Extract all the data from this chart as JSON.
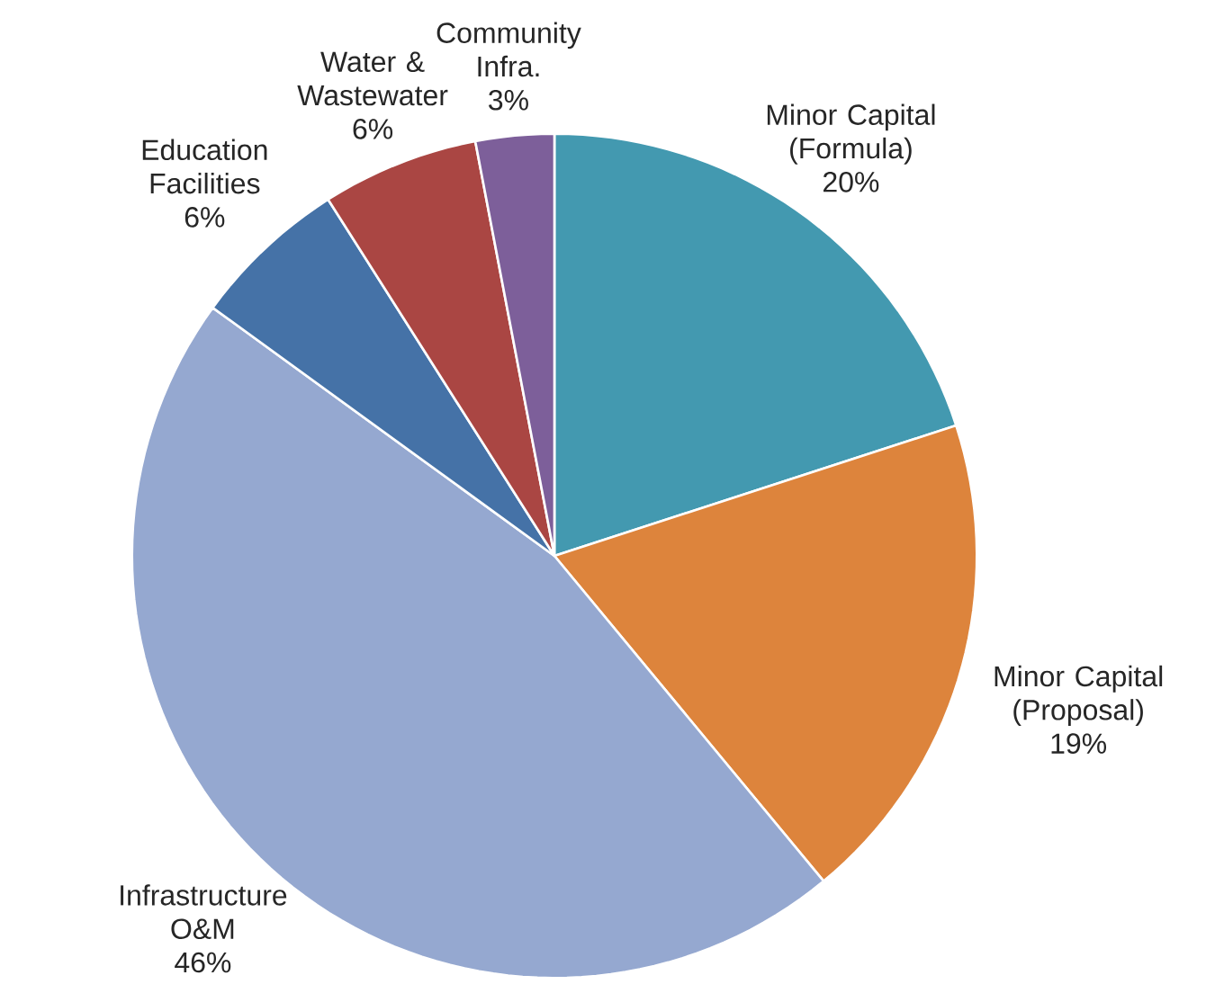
{
  "chart_data": {
    "type": "pie",
    "categories": [
      "Minor Capital (Formula)",
      "Minor Capital (Proposal)",
      "Infrastructure O&M",
      "Education Facilities",
      "Water & Wastewater",
      "Community Infra."
    ],
    "values": [
      20,
      19,
      46,
      6,
      6,
      3
    ],
    "value_labels": [
      "20%",
      "19%",
      "46%",
      "6%",
      "6%",
      "3%"
    ],
    "colors": [
      "#4399b0",
      "#dd843c",
      "#95a8d0",
      "#4572a7",
      "#aa4643",
      "#7d5f9a"
    ]
  }
}
